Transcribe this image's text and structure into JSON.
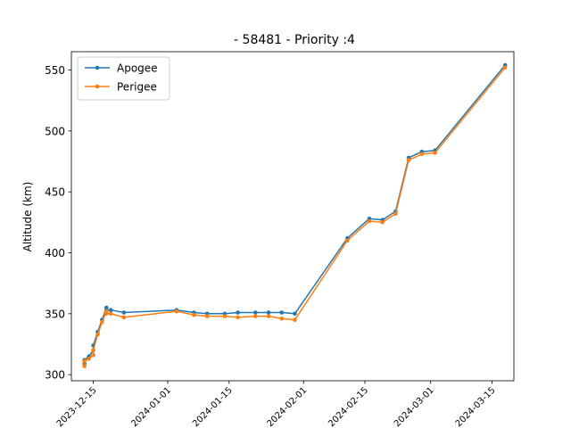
{
  "chart_data": {
    "type": "line",
    "title": "- 58481 - Priority :4",
    "xlabel": "",
    "ylabel": "Altitude (km)",
    "xlim": [
      "2023-12-10",
      "2024-03-20"
    ],
    "ylim": [
      295,
      565
    ],
    "x_ticks": [
      "2023-12-15",
      "2024-01-01",
      "2024-01-15",
      "2024-02-01",
      "2024-02-15",
      "2024-03-01",
      "2024-03-15"
    ],
    "y_ticks": [
      300,
      350,
      400,
      450,
      500,
      550
    ],
    "grid": false,
    "legend_position": "top-left",
    "x": [
      "2023-12-13",
      "2023-12-13",
      "2023-12-14",
      "2023-12-15",
      "2023-12-15",
      "2023-12-16",
      "2023-12-17",
      "2023-12-18",
      "2023-12-18",
      "2023-12-19",
      "2023-12-22",
      "2024-01-03",
      "2024-01-07",
      "2024-01-10",
      "2024-01-14",
      "2024-01-17",
      "2024-01-21",
      "2024-01-24",
      "2024-01-27",
      "2024-01-30",
      "2024-02-11",
      "2024-02-16",
      "2024-02-19",
      "2024-02-22",
      "2024-02-25",
      "2024-02-28",
      "2024-03-02",
      "2024-03-18"
    ],
    "series": [
      {
        "name": "Apogee",
        "color": "#1f77b4",
        "values": [
          309,
          312,
          315,
          320,
          324,
          335,
          345,
          355,
          353,
          353,
          351,
          353,
          351,
          350,
          350,
          351,
          351,
          351,
          351,
          350,
          412,
          428,
          427,
          434,
          478,
          483,
          484,
          554
        ]
      },
      {
        "name": "Perigee",
        "color": "#ff7f0e",
        "values": [
          307,
          311,
          313,
          316,
          320,
          333,
          343,
          352,
          350,
          350,
          347,
          352,
          349,
          348,
          348,
          347,
          348,
          348,
          346,
          345,
          410,
          426,
          425,
          432,
          476,
          481,
          482,
          552
        ]
      }
    ]
  }
}
